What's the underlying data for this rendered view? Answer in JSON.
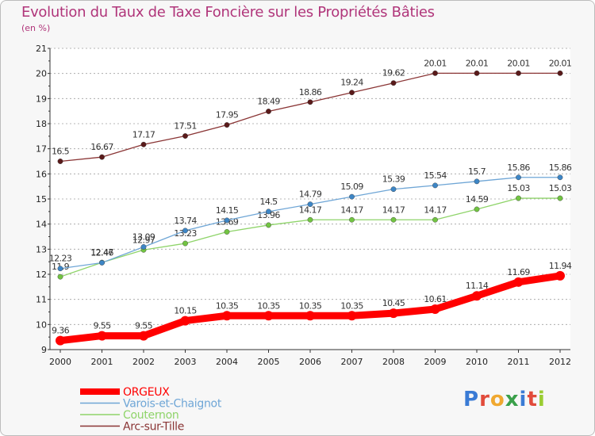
{
  "header": {
    "title": "Evolution du Taux de Taxe Foncière sur les Propriétés Bâties",
    "unit": "(en %)"
  },
  "logo": {
    "text": "Proxiti",
    "colors": [
      "#3a7bd5",
      "#e14b3b",
      "#f0a830",
      "#3aa04a",
      "#3a7bd5",
      "#e14b3b",
      "#9acd32"
    ]
  },
  "colors": {
    "title": "#b0357a",
    "grid": "#a0a0a0",
    "axis": "#333333",
    "plot_bg": "#ffffff"
  },
  "chart_data": {
    "type": "line",
    "title": "Evolution du Taux de Taxe Foncière sur les Propriétés Bâties",
    "ylabel": "(en %)",
    "xlabel": "",
    "x": [
      2000,
      2001,
      2002,
      2003,
      2004,
      2005,
      2006,
      2007,
      2008,
      2009,
      2010,
      2011,
      2012
    ],
    "ylim": [
      9,
      21
    ],
    "yticks": [
      9,
      10,
      11,
      12,
      13,
      14,
      15,
      16,
      17,
      18,
      19,
      20,
      21
    ],
    "grid": "horizontal dashed",
    "legend_position": "bottom-left",
    "series": [
      {
        "name": "ORGEUX",
        "color": "#ff0000",
        "line_width": 9,
        "values": [
          9.36,
          9.55,
          9.55,
          10.15,
          10.35,
          10.35,
          10.35,
          10.35,
          10.45,
          10.61,
          11.14,
          11.69,
          11.94
        ],
        "labels": [
          "9.36",
          "9.55",
          "9.55",
          "10.15",
          "10.35",
          "10.35",
          "10.35",
          "10.35",
          "10.45",
          "10.61",
          "11.14",
          "11.69",
          "11.94"
        ]
      },
      {
        "name": "Varois-et-Chaignot",
        "color": "#6fa6d6",
        "marker": "#3d86c6",
        "line_width": 1.3,
        "values": [
          12.23,
          12.46,
          13.09,
          13.74,
          14.15,
          14.5,
          14.79,
          15.09,
          15.39,
          15.54,
          15.7,
          15.86,
          15.86
        ],
        "labels": [
          "12.23",
          "12.46",
          "13.09",
          "13.74",
          "14.15",
          "14.5",
          "14.79",
          "15.09",
          "15.39",
          "15.54",
          "15.7",
          "15.86",
          "15.86"
        ]
      },
      {
        "name": "Couternon",
        "color": "#8fd46a",
        "marker": "#72c442",
        "line_width": 1.3,
        "values": [
          11.9,
          12.47,
          12.97,
          13.23,
          13.69,
          13.96,
          14.17,
          14.17,
          14.17,
          14.17,
          14.59,
          15.03,
          15.03
        ],
        "labels": [
          "11.9",
          "12.47",
          "12.97",
          "13.23",
          "13.69",
          "13.96",
          "14.17",
          "14.17",
          "14.17",
          "14.17",
          "14.59",
          "15.03",
          "15.03"
        ]
      },
      {
        "name": "Arc-sur-Tille",
        "color": "#8a3535",
        "marker": "#5a1a1a",
        "line_width": 1.3,
        "values": [
          16.5,
          16.67,
          17.17,
          17.51,
          17.95,
          18.49,
          18.86,
          19.24,
          19.62,
          20.01,
          20.01,
          20.01,
          20.01
        ],
        "labels": [
          "16.5",
          "16.67",
          "17.17",
          "17.51",
          "17.95",
          "18.49",
          "18.86",
          "19.24",
          "19.62",
          "20.01",
          "20.01",
          "20.01",
          "20.01"
        ]
      }
    ]
  }
}
